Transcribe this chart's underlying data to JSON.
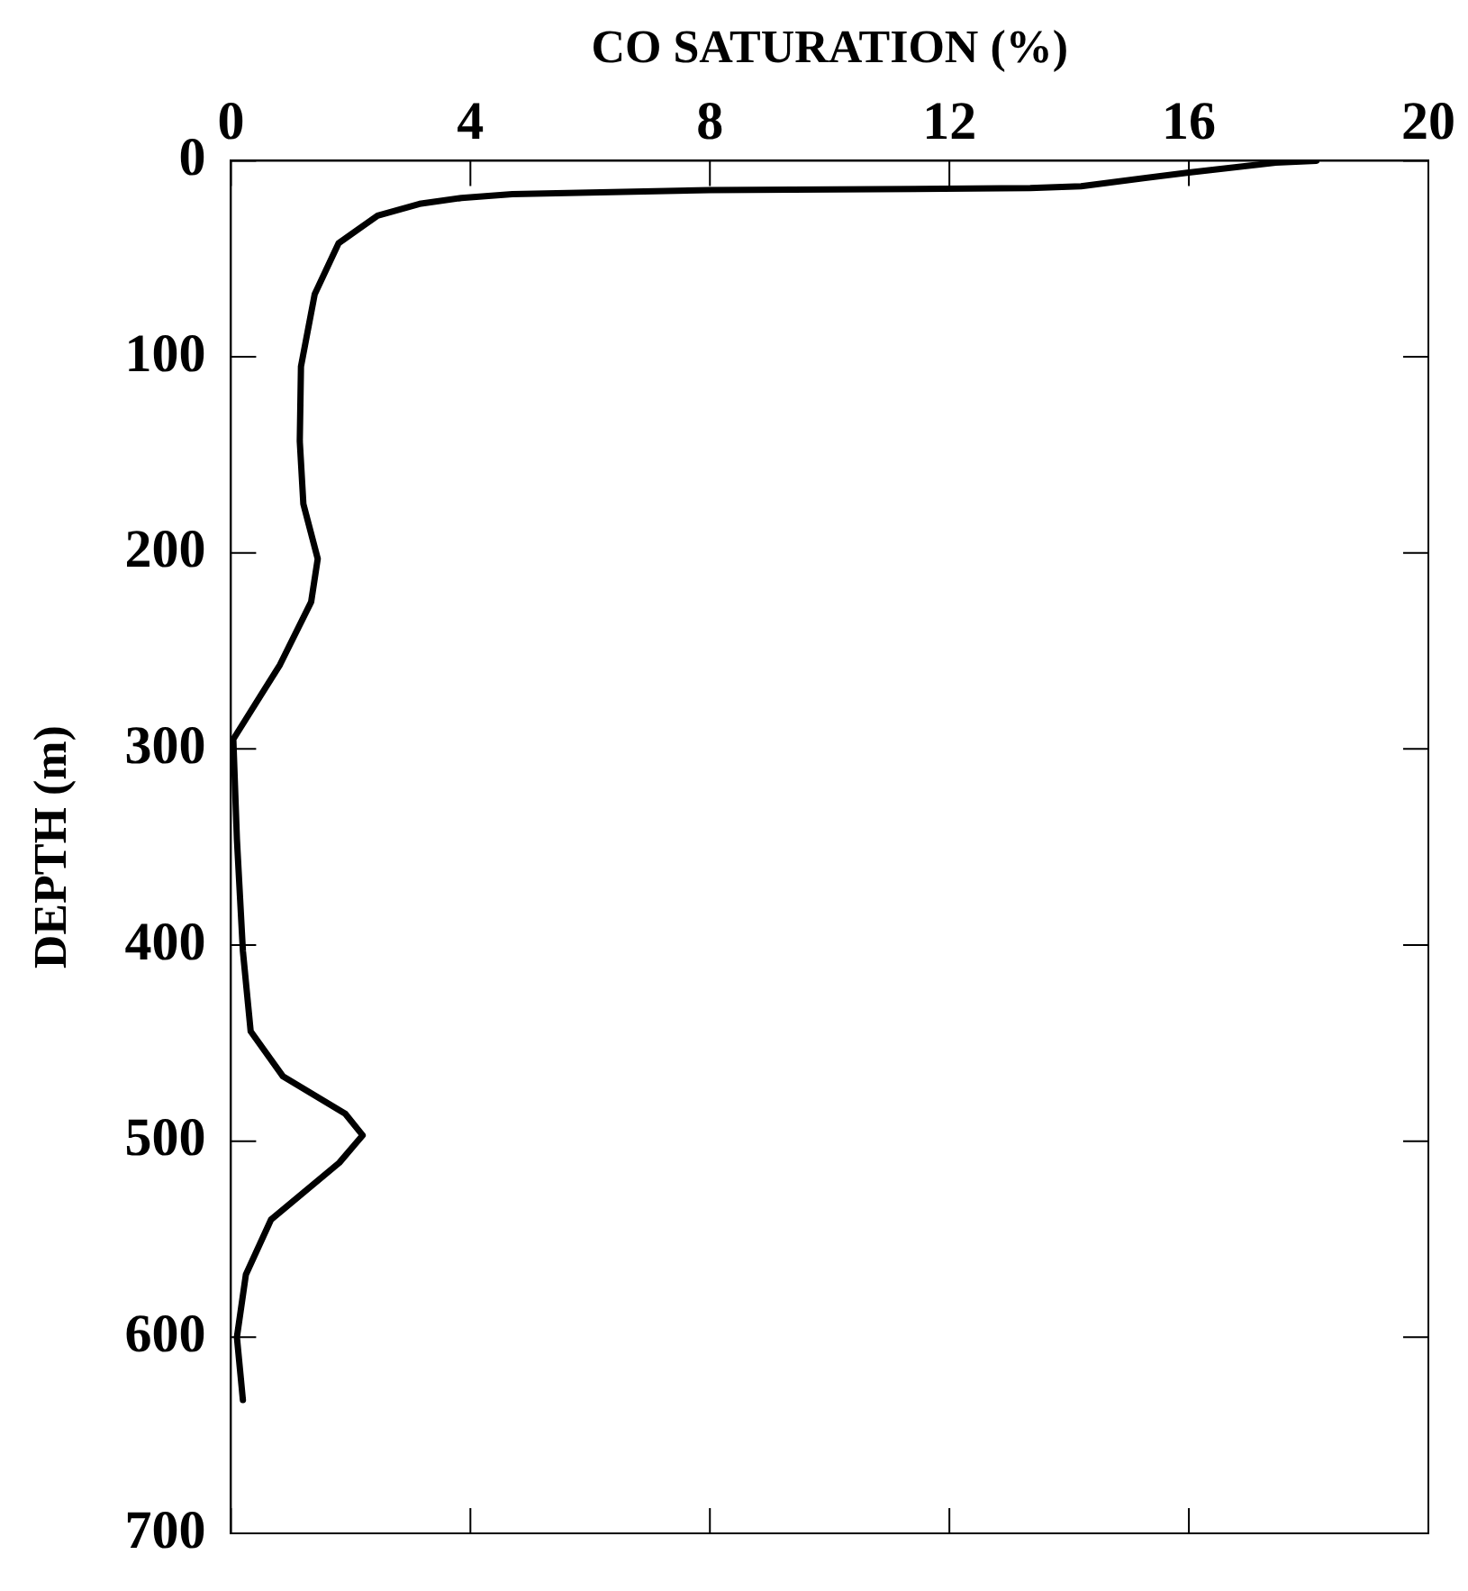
{
  "chart_data": {
    "type": "line",
    "xlabel": "CO SATURATION (%)",
    "ylabel": "DEPTH (m)",
    "xlim": [
      0,
      20
    ],
    "xticks": [
      0,
      4,
      8,
      12,
      16,
      20
    ],
    "ylim": [
      700,
      0
    ],
    "yticks": [
      0,
      100,
      200,
      300,
      400,
      500,
      600,
      700
    ],
    "grid": false,
    "legend": false,
    "marker": "none",
    "line_style": "solid",
    "series": [
      {
        "color": "#000000",
        "x": [
          18.13,
          17.45,
          16.0,
          14.2,
          13.35,
          8.0,
          4.7,
          3.85,
          3.15,
          2.45,
          1.8,
          1.4,
          1.17,
          1.15,
          1.21,
          1.45,
          1.34,
          0.82,
          0.04,
          0.1,
          0.2,
          0.33,
          0.87,
          1.91,
          2.2,
          1.81,
          0.67,
          0.25,
          0.1,
          0.2
        ],
        "values": [
          0,
          1,
          6,
          13,
          14,
          15,
          17,
          19,
          22,
          28,
          42,
          68,
          105,
          143,
          175,
          203,
          225,
          257,
          295,
          346,
          403,
          444,
          467,
          486,
          497,
          511,
          540,
          568,
          600,
          632
        ]
      }
    ]
  }
}
